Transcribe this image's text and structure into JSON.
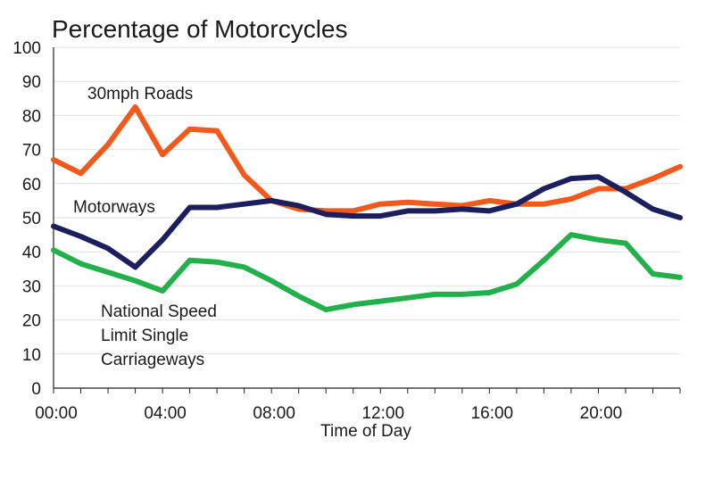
{
  "chart_data": {
    "type": "line",
    "title": "Percentage of Motorcycles",
    "xlabel": "Time of Day",
    "ylabel": "",
    "ylim": [
      0,
      100
    ],
    "yticks": [
      "0",
      "10",
      "20",
      "30",
      "40",
      "50",
      "60",
      "70",
      "80",
      "90",
      "100"
    ],
    "xlim": [
      0,
      23
    ],
    "xticks": [
      {
        "x": 0,
        "label": "00:00"
      },
      {
        "x": 4,
        "label": "04:00"
      },
      {
        "x": 8,
        "label": "08:00"
      },
      {
        "x": 12,
        "label": "12:00"
      },
      {
        "x": 16,
        "label": "16:00"
      },
      {
        "x": 20,
        "label": "20:00"
      }
    ],
    "x": [
      0,
      1,
      2,
      3,
      4,
      5,
      6,
      7,
      8,
      9,
      10,
      11,
      12,
      13,
      14,
      15,
      16,
      17,
      18,
      19,
      20,
      21,
      22,
      23
    ],
    "grid": true,
    "legend": "none",
    "series": [
      {
        "name": "30mph Roads",
        "label_lines": [
          "30mph Roads"
        ],
        "color": "#f2591a",
        "values": [
          67,
          63,
          71.5,
          82.5,
          68.5,
          76,
          75.5,
          62.5,
          55,
          52.5,
          52,
          52,
          54,
          54.5,
          54,
          53.5,
          55,
          54,
          54,
          55.5,
          58.5,
          58.5,
          61.5,
          65
        ]
      },
      {
        "name": "Motorways",
        "label_lines": [
          "Motorways"
        ],
        "color": "#1c1f5e",
        "values": [
          47.5,
          44.5,
          41,
          35.5,
          43.5,
          53,
          53,
          54,
          55,
          53.5,
          51,
          50.5,
          50.5,
          52,
          52,
          52.5,
          52,
          54,
          58.5,
          61.5,
          62,
          57.5,
          52.5,
          50
        ]
      },
      {
        "name": "National Speed Limit Single Carriageways",
        "label_lines": [
          "National Speed",
          "Limit Single",
          "Carriageways"
        ],
        "color": "#22b04b",
        "values": [
          40.5,
          36.5,
          34,
          31.5,
          28.5,
          37.5,
          37,
          35.5,
          31.5,
          27,
          23,
          24.5,
          25.5,
          26.5,
          27.5,
          27.5,
          28,
          30.5,
          37.5,
          45,
          43.5,
          42.5,
          33.5,
          32.5
        ]
      }
    ]
  }
}
